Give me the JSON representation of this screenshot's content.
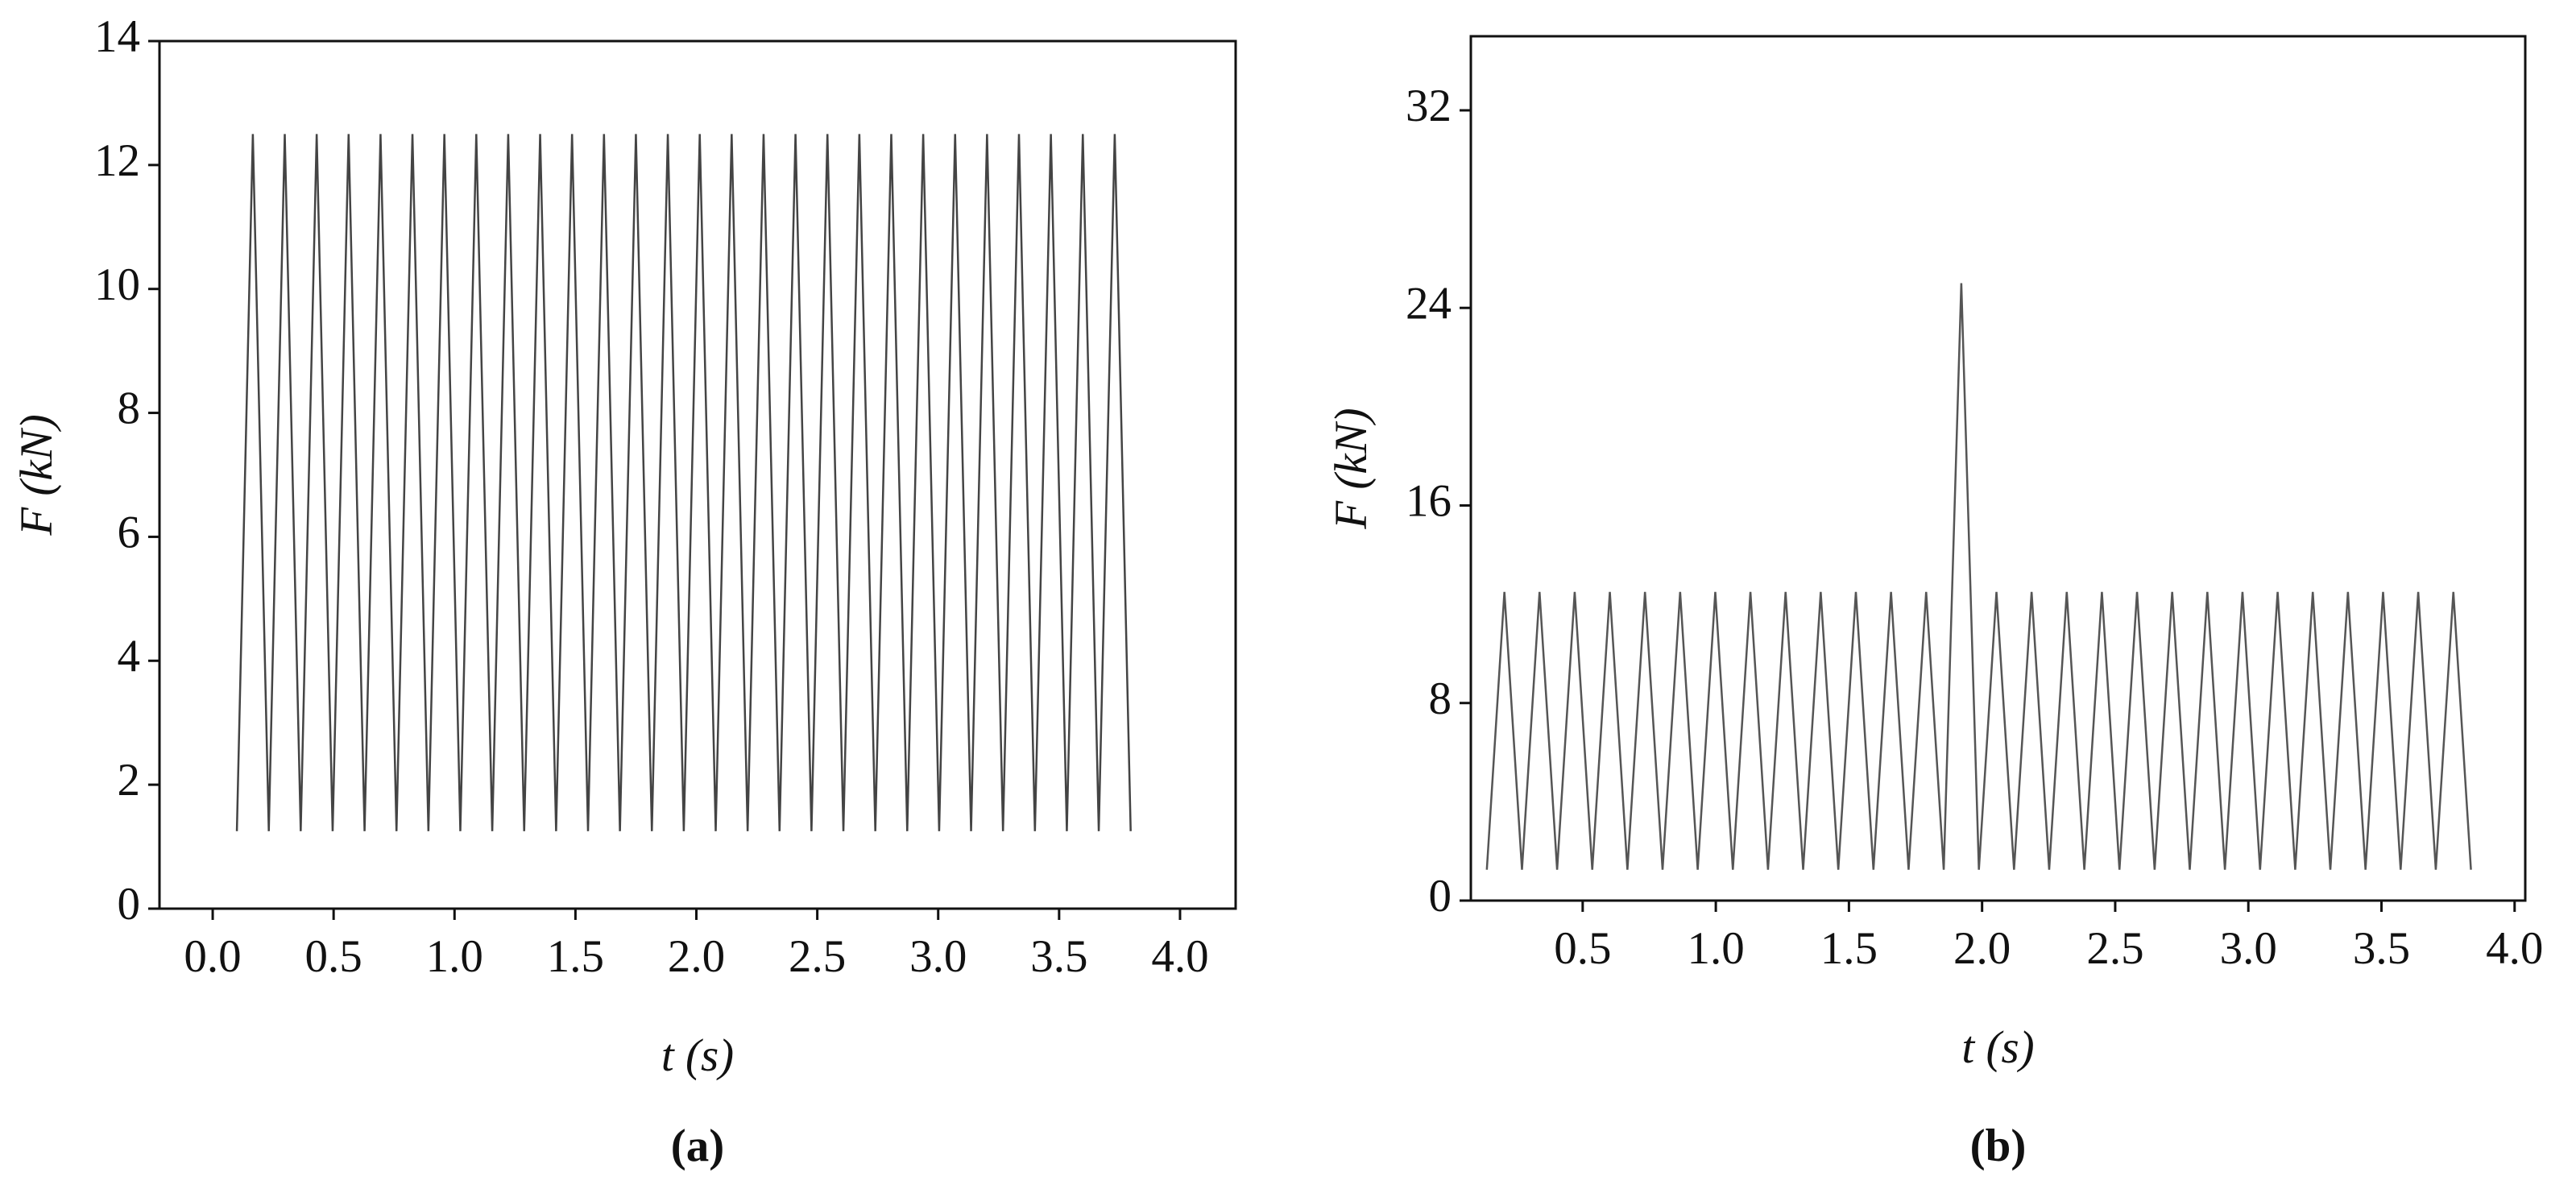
{
  "chart_data": [
    {
      "type": "line",
      "caption": "(a)",
      "x_label": "t (s)",
      "y_label": "F (kN)",
      "xlim": [
        -0.22,
        4.23
      ],
      "ylim": [
        0,
        14
      ],
      "xticks": [
        {
          "value": 0,
          "label": "0.0"
        },
        0.5,
        {
          "value": 1,
          "label": "1.0"
        },
        1.5,
        {
          "value": 2,
          "label": "2.0"
        },
        2.5,
        {
          "value": 3,
          "label": "3.0"
        },
        3.5,
        {
          "value": 4,
          "label": "4.0"
        }
      ],
      "yticks": [
        0,
        2,
        4,
        6,
        8,
        10,
        12,
        14
      ],
      "color": "#444444",
      "x": [
        0.1,
        0.166,
        0.232,
        0.298,
        0.364,
        0.43,
        0.496,
        0.562,
        0.628,
        0.694,
        0.76,
        0.826,
        0.892,
        0.958,
        1.024,
        1.09,
        1.156,
        1.222,
        1.288,
        1.354,
        1.42,
        1.486,
        1.552,
        1.618,
        1.684,
        1.75,
        1.816,
        1.882,
        1.948,
        2.014,
        2.08,
        2.146,
        2.212,
        2.278,
        2.344,
        2.41,
        2.476,
        2.542,
        2.608,
        2.674,
        2.74,
        2.806,
        2.872,
        2.938,
        3.004,
        3.07,
        3.136,
        3.202,
        3.268,
        3.334,
        3.4,
        3.466,
        3.532,
        3.598,
        3.664,
        3.73,
        3.796
      ],
      "values": [
        1.25,
        12.5,
        1.25,
        12.5,
        1.25,
        12.5,
        1.25,
        12.5,
        1.25,
        12.5,
        1.25,
        12.5,
        1.25,
        12.5,
        1.25,
        12.5,
        1.25,
        12.5,
        1.25,
        12.5,
        1.25,
        12.5,
        1.25,
        12.5,
        1.25,
        12.5,
        1.25,
        12.5,
        1.25,
        12.5,
        1.25,
        12.5,
        1.25,
        12.5,
        1.25,
        12.5,
        1.25,
        12.5,
        1.25,
        12.5,
        1.25,
        12.5,
        1.25,
        12.5,
        1.25,
        12.5,
        1.25,
        12.5,
        1.25,
        12.5,
        1.25,
        12.5,
        1.25,
        12.5,
        1.25,
        12.5,
        1.25
      ]
    },
    {
      "type": "line",
      "caption": "(b)",
      "x_label": "t (s)",
      "y_label": "F (kN)",
      "xlim": [
        0.08,
        4.04
      ],
      "ylim": [
        0,
        35
      ],
      "xticks": [
        0.5,
        {
          "value": 1,
          "label": "1.0"
        },
        1.5,
        {
          "value": 2,
          "label": "2.0"
        },
        2.5,
        {
          "value": 3,
          "label": "3.0"
        },
        3.5,
        {
          "value": 4,
          "label": "4.0"
        }
      ],
      "yticks": [
        0,
        8,
        16,
        24,
        32
      ],
      "color": "#555555",
      "x": [
        0.14,
        0.206,
        0.272,
        0.338,
        0.404,
        0.47,
        0.536,
        0.602,
        0.668,
        0.734,
        0.8,
        0.866,
        0.932,
        0.998,
        1.064,
        1.13,
        1.196,
        1.262,
        1.328,
        1.394,
        1.46,
        1.526,
        1.592,
        1.658,
        1.724,
        1.79,
        1.856,
        1.922,
        1.988,
        2.054,
        2.12,
        2.186,
        2.252,
        2.318,
        2.384,
        2.45,
        2.516,
        2.582,
        2.648,
        2.714,
        2.78,
        2.846,
        2.912,
        2.978,
        3.044,
        3.11,
        3.176,
        3.242,
        3.308,
        3.374,
        3.44,
        3.506,
        3.572,
        3.638,
        3.704,
        3.77,
        3.836
      ],
      "values": [
        1.25,
        12.5,
        1.25,
        12.5,
        1.25,
        12.5,
        1.25,
        12.5,
        1.25,
        12.5,
        1.25,
        12.5,
        1.25,
        12.5,
        1.25,
        12.5,
        1.25,
        12.5,
        1.25,
        12.5,
        1.25,
        12.5,
        1.25,
        12.5,
        1.25,
        12.5,
        1.25,
        25,
        1.25,
        12.5,
        1.25,
        12.5,
        1.25,
        12.5,
        1.25,
        12.5,
        1.25,
        12.5,
        1.25,
        12.5,
        1.25,
        12.5,
        1.25,
        12.5,
        1.25,
        12.5,
        1.25,
        12.5,
        1.25,
        12.5,
        1.25,
        12.5,
        1.25,
        12.5,
        1.25,
        12.5,
        1.25
      ]
    }
  ]
}
